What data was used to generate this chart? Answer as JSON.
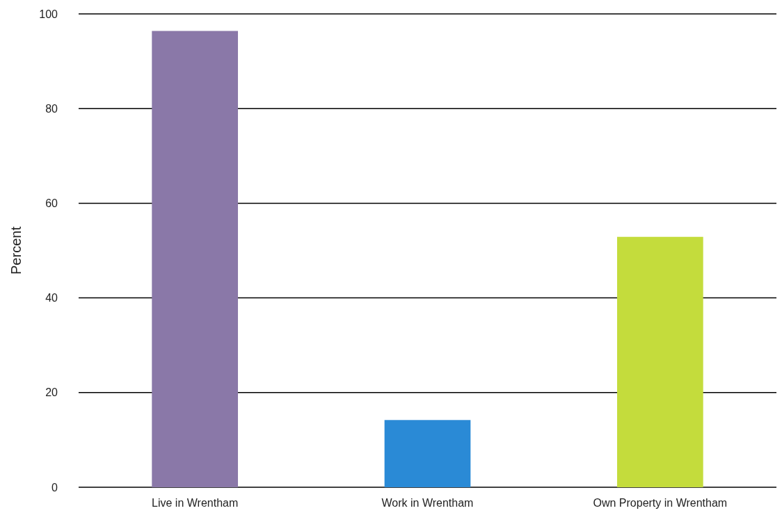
{
  "chart_data": {
    "type": "bar",
    "ylabel": "Percent",
    "categories": [
      "Live in Wrentham",
      "Work in Wrentham",
      "Own Property in Wrentham"
    ],
    "values": [
      96.4,
      14.2,
      52.9
    ],
    "colors": [
      "#8a78a8",
      "#2a8ad6",
      "#c4dc3c"
    ],
    "ylim": [
      0,
      100
    ],
    "yticks": [
      0,
      20,
      40,
      60,
      80,
      100
    ],
    "grid": "y"
  }
}
